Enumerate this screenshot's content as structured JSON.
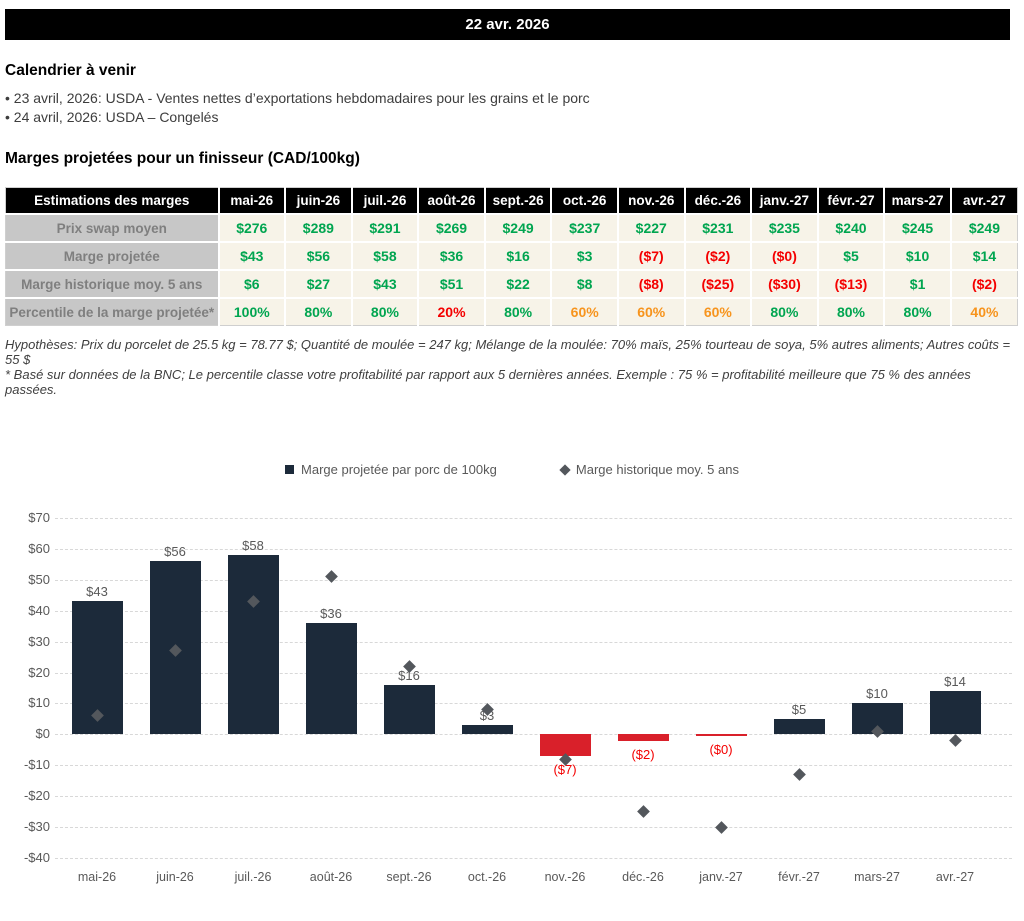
{
  "header": {
    "date": "22 avr. 2026"
  },
  "calendar": {
    "title": "Calendrier à venir",
    "items": [
      "• 23 avril, 2026: USDA - Ventes nettes d’exportations hebdomadaires pour les grains et le porc",
      "• 24 avril, 2026: USDA – Congelés"
    ]
  },
  "table": {
    "title": "Marges projetées pour un finisseur (CAD/100kg)",
    "header": [
      "Estimations des marges",
      "mai-26",
      "juin-26",
      "juil.-26",
      "août-26",
      "sept.-26",
      "oct.-26",
      "nov.-26",
      "déc.-26",
      "janv.-27",
      "févr.-27",
      "mars-27",
      "avr.-27"
    ],
    "rows": [
      {
        "label": "Prix swap moyen",
        "values": [
          "$276",
          "$289",
          "$291",
          "$269",
          "$249",
          "$237",
          "$227",
          "$231",
          "$235",
          "$240",
          "$245",
          "$249"
        ],
        "colors": [
          "g",
          "g",
          "g",
          "g",
          "g",
          "g",
          "g",
          "g",
          "g",
          "g",
          "g",
          "g"
        ]
      },
      {
        "label": "Marge projetée",
        "values": [
          "$43",
          "$56",
          "$58",
          "$36",
          "$16",
          "$3",
          "($7)",
          "($2)",
          "($0)",
          "$5",
          "$10",
          "$14"
        ],
        "colors": [
          "g",
          "g",
          "g",
          "g",
          "g",
          "g",
          "r",
          "r",
          "r",
          "g",
          "g",
          "g"
        ]
      },
      {
        "label": "Marge historique moy. 5 ans",
        "values": [
          "$6",
          "$27",
          "$43",
          "$51",
          "$22",
          "$8",
          "($8)",
          "($25)",
          "($30)",
          "($13)",
          "$1",
          "($2)"
        ],
        "colors": [
          "g",
          "g",
          "g",
          "g",
          "g",
          "g",
          "r",
          "r",
          "r",
          "r",
          "g",
          "r"
        ]
      },
      {
        "label": "Percentile de la marge projetée*",
        "values": [
          "100%",
          "80%",
          "80%",
          "20%",
          "80%",
          "60%",
          "60%",
          "60%",
          "80%",
          "80%",
          "80%",
          "40%"
        ],
        "colors": [
          "g",
          "g",
          "g",
          "r",
          "g",
          "o",
          "o",
          "o",
          "g",
          "g",
          "g",
          "o"
        ]
      }
    ]
  },
  "notes": {
    "hypotheses": "Hypothèses: Prix du porcelet de 25.5 kg = 78.77 $; Quantité de moulée = 247 kg; Mélange de la moulée: 70% maïs, 25% tourteau de soya, 5% autres aliments; Autres coûts = 55 $",
    "footnote": "* Basé sur données de la BNC; Le percentile classe votre profitabilité par rapport aux 5 dernières années. Exemple : 75 % = profitabilité meilleure que 75 % des années passées."
  },
  "chart_data": {
    "type": "bar",
    "categories": [
      "mai-26",
      "juin-26",
      "juil.-26",
      "août-26",
      "sept.-26",
      "oct.-26",
      "nov.-26",
      "déc.-26",
      "janv.-27",
      "févr.-27",
      "mars-27",
      "avr.-27"
    ],
    "series": [
      {
        "name": "Marge projetée par porc de 100kg",
        "type": "bar",
        "values": [
          43,
          56,
          58,
          36,
          16,
          3,
          -7,
          -2,
          -0.4,
          5,
          10,
          14
        ],
        "labels": [
          "$43",
          "$56",
          "$58",
          "$36",
          "$16",
          "$3",
          "($7)",
          "($2)",
          "($0)",
          "$5",
          "$10",
          "$14"
        ]
      },
      {
        "name": "Marge historique moy. 5 ans",
        "type": "scatter",
        "values": [
          6,
          27,
          43,
          51,
          22,
          8,
          -8,
          -25,
          -30,
          -13,
          1,
          -2
        ]
      }
    ],
    "ylim": [
      -40,
      70
    ],
    "y_tick_values": [
      70,
      60,
      50,
      40,
      30,
      20,
      10,
      0,
      -10,
      -20,
      -30,
      -40
    ],
    "y_tick_labels": [
      "$70",
      "$60",
      "$50",
      "$40",
      "$30",
      "$20",
      "$10",
      "$0",
      "-$10",
      "-$20",
      "-$30",
      "-$40"
    ],
    "grid": "dashed-horizontal",
    "legend_position": "top-center",
    "colors": {
      "bar_positive": "#1c2a3a",
      "bar_negative": "#d9202a",
      "marker": "#53575c",
      "negative_label": "#f40000",
      "axis_text": "#595959"
    }
  }
}
